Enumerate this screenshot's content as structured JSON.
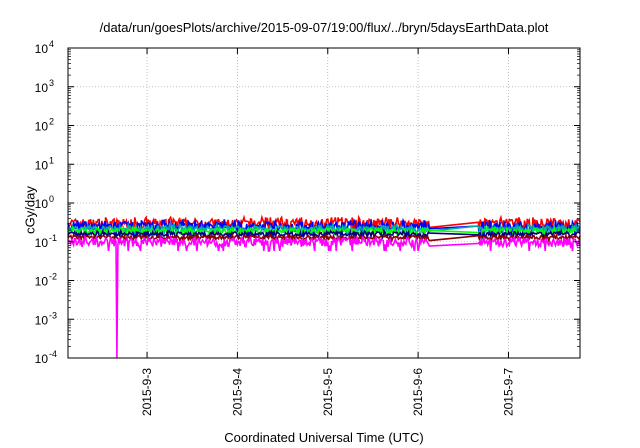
{
  "chart_data": {
    "type": "line",
    "title": "/data/run/goesPlots/archive/2015-09-07/19:00/flux/../bryn/5daysEarthData.plot",
    "xlabel": "Coordinated Universal Time (UTC)",
    "ylabel": "cGy/day",
    "y_scale": "log",
    "ylim": [
      0.0001,
      10000
    ],
    "xlim": [
      "2015-09-02 03:00",
      "2015-09-07 19:00"
    ],
    "grid": true,
    "legend": "none",
    "y_ticks": [
      {
        "value": 0.0001,
        "base": "10",
        "exp": "-4"
      },
      {
        "value": 0.001,
        "base": "10",
        "exp": "-3"
      },
      {
        "value": 0.01,
        "base": "10",
        "exp": "-2"
      },
      {
        "value": 0.1,
        "base": "10",
        "exp": "-1"
      },
      {
        "value": 1,
        "base": "10",
        "exp": "0"
      },
      {
        "value": 10,
        "base": "10",
        "exp": "1"
      },
      {
        "value": 100,
        "base": "10",
        "exp": "2"
      },
      {
        "value": 1000,
        "base": "10",
        "exp": "3"
      },
      {
        "value": 10000,
        "base": "10",
        "exp": "4"
      }
    ],
    "x_ticks": [
      "2015-9-3",
      "2015-9-4",
      "2015-9-5",
      "2015-9-6",
      "2015-9-7"
    ],
    "gap": {
      "start": "2015-09-06 03:00",
      "end": "2015-09-06 16:00"
    },
    "series": [
      {
        "color": "#ff0000",
        "level": 0.3,
        "spread": 0.14
      },
      {
        "color": "#0000ff",
        "level": 0.25,
        "spread": 0.14
      },
      {
        "color": "#00aaaa",
        "level": 0.22,
        "spread": 0.08
      },
      {
        "color": "#00ff00",
        "level": 0.19,
        "spread": 0.07
      },
      {
        "color": "#000080",
        "level": 0.16,
        "spread": 0.06
      },
      {
        "color": "#8b0000",
        "level": 0.13,
        "spread": 0.05
      },
      {
        "color": "#ff00ff",
        "level": 0.1,
        "spread": 0.12
      }
    ],
    "notable_dip": {
      "series_color": "#ff00ff",
      "time": "2015-09-02 16:00",
      "min_value": 0.0001
    }
  }
}
